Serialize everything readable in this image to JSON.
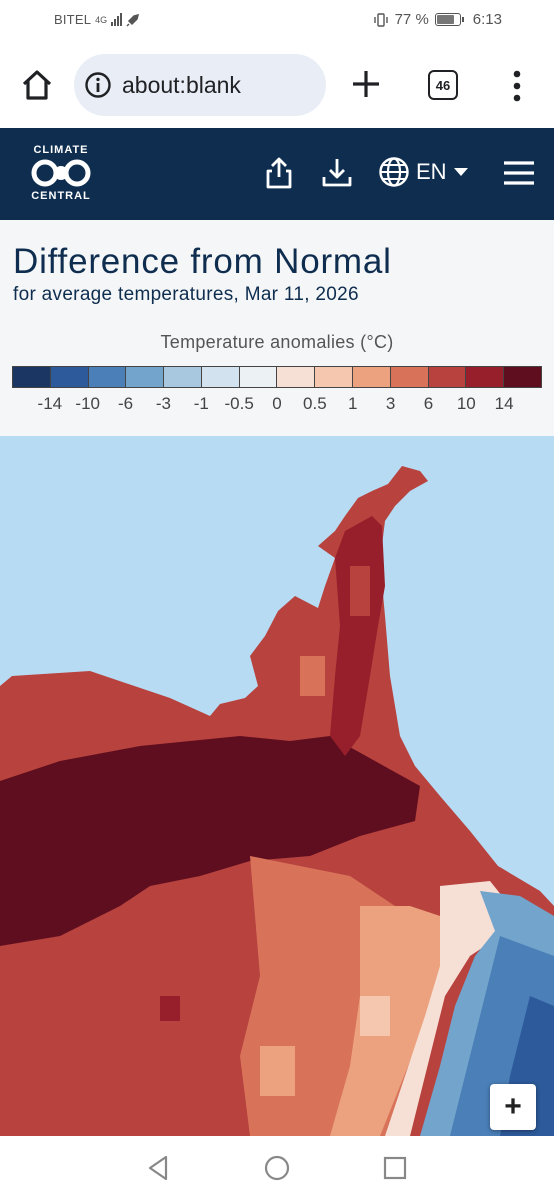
{
  "status_bar": {
    "carrier": "BITEL",
    "network": "4G",
    "battery": "77 %",
    "time": "6:13"
  },
  "browser": {
    "url": "about:blank",
    "tab_count": "46",
    "icons": {
      "home": "home-icon",
      "info": "info-icon",
      "new_tab": "plus-icon",
      "tabs": "tab-switcher-icon",
      "more": "more-vert-icon"
    }
  },
  "site": {
    "logo_top": "CLIMATE",
    "logo_bottom": "CENTRAL",
    "language": "EN",
    "icons": [
      "share-icon",
      "download-icon",
      "globe-icon",
      "menu-icon"
    ]
  },
  "map_panel": {
    "title": "Difference from Normal",
    "subtitle": "for average temperatures, Mar 11, 2026",
    "legend_title": "Temperature anomalies (°C)",
    "legend_colors": [
      "#1c3664",
      "#2c5a9a",
      "#4a7fb8",
      "#72a4cc",
      "#a8c8e0",
      "#d2e2ee",
      "#ecf1f4",
      "#f6e0d6",
      "#f4c7ae",
      "#eca27e",
      "#d8735a",
      "#b8423e",
      "#961f2b",
      "#5e0e1e"
    ],
    "legend_ticks": [
      "-14",
      "-10",
      "-6",
      "-3",
      "-1",
      "-0.5",
      "0",
      "0.5",
      "1",
      "3",
      "6",
      "10",
      "14"
    ],
    "zoom_in_label": "+"
  },
  "nav_bar": {
    "icons": [
      "back-icon",
      "home-circle-icon",
      "recents-icon"
    ]
  }
}
